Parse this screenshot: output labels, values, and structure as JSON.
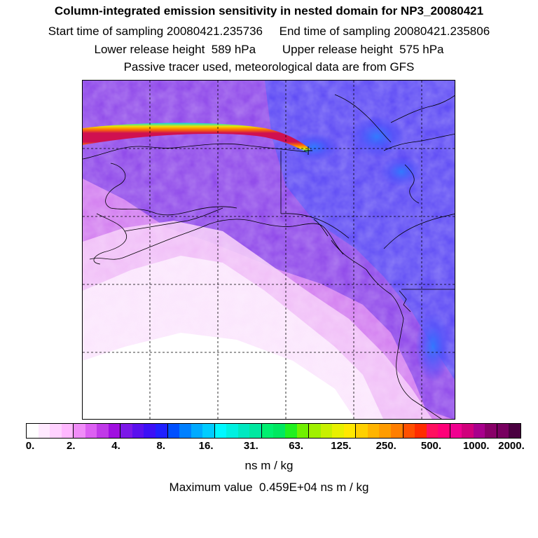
{
  "titles": {
    "main": "Column-integrated emission sensitivity in nested domain for NP3_20080421",
    "sampling": "Start time of sampling 20080421.235736     End time of sampling 20080421.235806",
    "release": "Lower release height  589 hPa        Upper release height  575 hPa",
    "tracer": "Passive tracer used, meteorological data are from GFS"
  },
  "colorbar": {
    "tick_labels": [
      "0.",
      "2.",
      "4.",
      "8.",
      "16.",
      "31.",
      "63.",
      "125.",
      "250.",
      "500.",
      "1000.",
      "2000."
    ],
    "units": "ns m / kg",
    "colors": [
      "#ffffff",
      "#ffe9ff",
      "#ffd2ff",
      "#ffb8ff",
      "#f08cf8",
      "#dc60f2",
      "#c03ae8",
      "#a010e0",
      "#7c18e8",
      "#5a10ee",
      "#3c10f6",
      "#2020ff",
      "#0050ff",
      "#0080ff",
      "#00aaff",
      "#00ccff",
      "#00f8ff",
      "#00f0e0",
      "#00e8c0",
      "#00e8a0",
      "#00f070",
      "#00e860",
      "#20f020",
      "#70f000",
      "#a0f000",
      "#c8f000",
      "#e8f000",
      "#ffe800",
      "#ffd000",
      "#ffb400",
      "#ff9c00",
      "#ff7e00",
      "#ff5000",
      "#ff2c00",
      "#ff1060",
      "#ff0078",
      "#f00090",
      "#d0007c",
      "#a8008c",
      "#880068",
      "#780060",
      "#4a0040"
    ]
  },
  "maximum": "Maximum value  0.459E+04 ns m / kg",
  "map": {
    "colors": {
      "background": "#e48ff0",
      "light_pink": "#f8dcfb",
      "very_light": "#fdf2fe",
      "purple": "#b640e6",
      "violet": "#8a2ee8",
      "blue": "#5c3ff0",
      "deep_blue": "#4a4dfa",
      "cyan_blue": "#2a7cff",
      "plume_red": "#d01050",
      "plume_yellow": "#f0e000",
      "plume_cyan": "#00e0e0",
      "coast": "#000000"
    }
  }
}
